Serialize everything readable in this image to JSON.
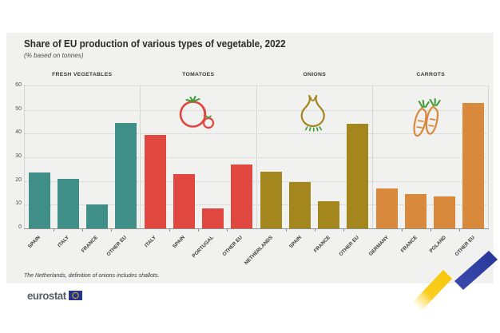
{
  "page": {
    "title": "Share of EU production of various types of vegetable, 2022",
    "subtitle": "(% based on tonnes)",
    "footnote": "The Netherlands, definition of onions includes shallots.",
    "logo_text": "eurostat"
  },
  "colors": {
    "card_background": "#f1f1ef",
    "teal": "#3f8e88",
    "red": "#e0473e",
    "olive": "#a3861d",
    "orange": "#d8893c",
    "leaf_green": "#3f9b35",
    "ribbon_yellow": "#f7c80c",
    "ribbon_gray": "#b9bec6",
    "ribbon_blue": "#2b3a9a",
    "flag_blue": "#27348b",
    "flag_star_yellow": "#ffd617"
  },
  "chart_data": {
    "type": "bar",
    "ylim": [
      0,
      60
    ],
    "yticks": [
      0,
      10,
      20,
      30,
      40,
      50,
      60
    ],
    "grid": "dotted-horizontal",
    "legend_position": "none",
    "panels": [
      {
        "title": "FRESH VEGETABLES",
        "color": "#3f8e88",
        "icon": null,
        "categories": [
          "SPAIN",
          "ITALY",
          "FRANCE",
          "OTHER EU"
        ],
        "values": [
          23.5,
          21,
          10,
          44.5
        ]
      },
      {
        "title": "TOMATOES",
        "color": "#e0473e",
        "icon": "tomato-icon",
        "categories": [
          "ITALY",
          "SPAIN",
          "PORTUGAL",
          "OTHER EU"
        ],
        "values": [
          39.5,
          23,
          8.5,
          27
        ]
      },
      {
        "title": "ONIONS",
        "color": "#a3861d",
        "icon": "onion-icon",
        "categories": [
          "NETHERLANDS",
          "SPAIN",
          "FRANCE",
          "OTHER EU"
        ],
        "values": [
          24,
          19.5,
          11.5,
          44
        ]
      },
      {
        "title": "CARROTS",
        "color": "#d8893c",
        "icon": "carrot-icon",
        "categories": [
          "GERMANY",
          "FRANCE",
          "POLAND",
          "OTHER EU"
        ],
        "values": [
          17,
          14.5,
          13.5,
          53
        ]
      }
    ]
  }
}
